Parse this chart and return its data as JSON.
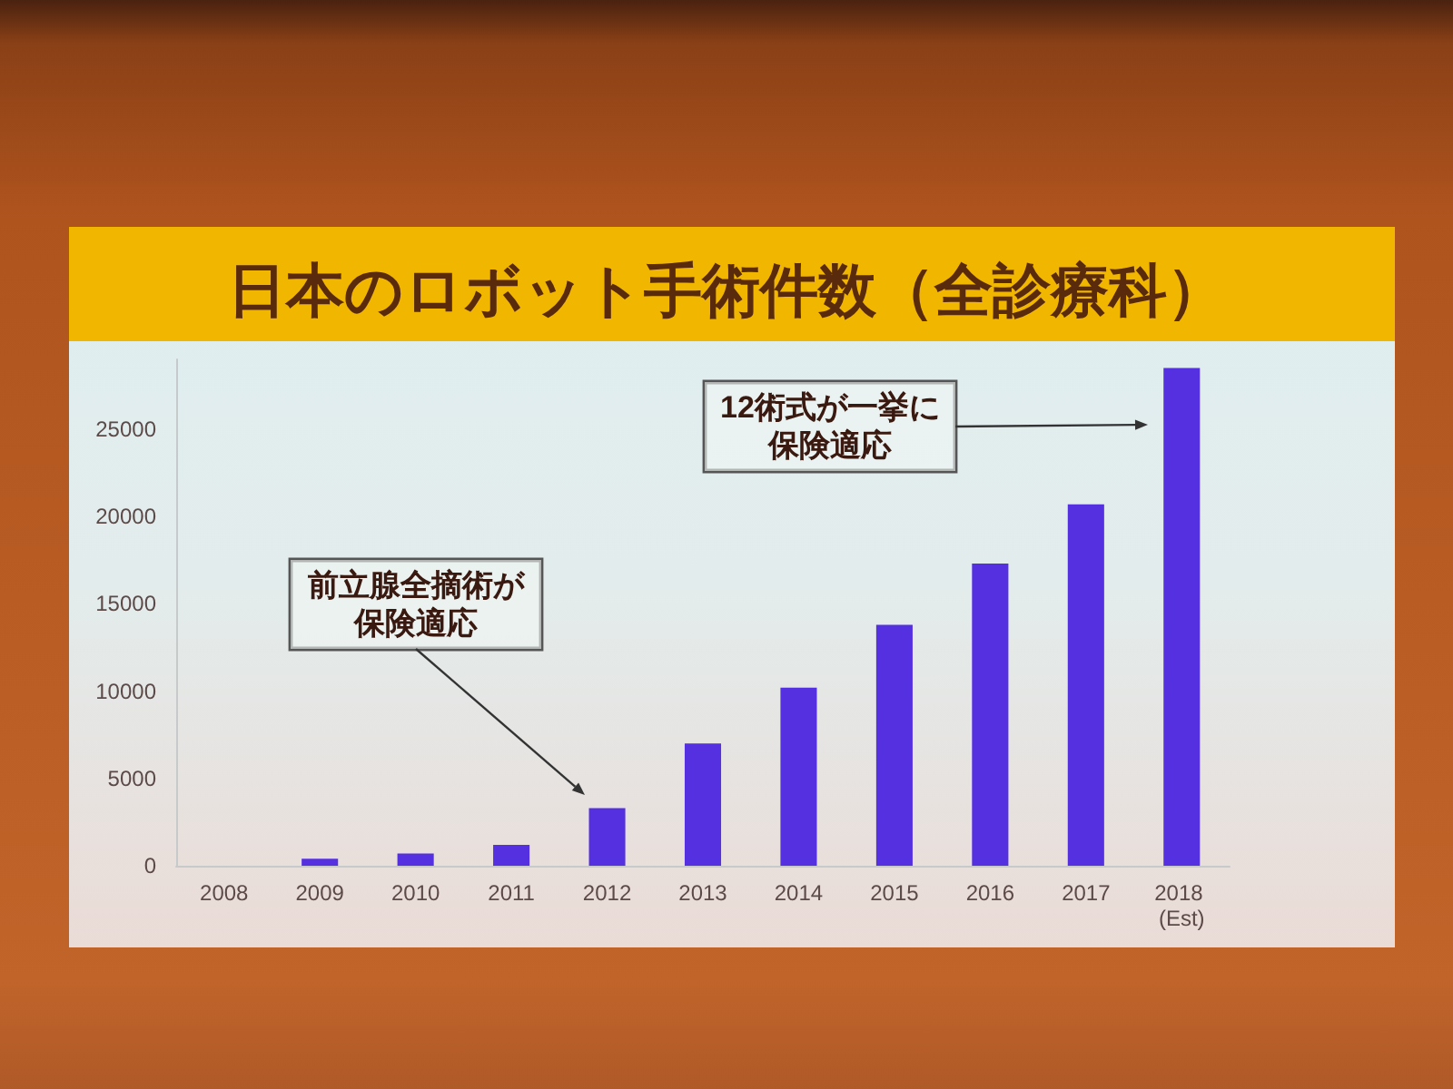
{
  "chart_data": {
    "type": "bar",
    "title": "日本のロボット手術件数（全診療科）",
    "categories": [
      "2008",
      "2009",
      "2010",
      "2011",
      "2012",
      "2013",
      "2014",
      "2015",
      "2016",
      "2017",
      "2018 (Est)"
    ],
    "values": [
      0,
      400,
      700,
      1200,
      3300,
      7000,
      10200,
      13800,
      17300,
      20700,
      28500
    ],
    "color": "#5530e0",
    "ylim": [
      0,
      29000
    ],
    "yticks": [
      0,
      5000,
      10000,
      15000,
      20000,
      25000
    ],
    "grid": false,
    "annotations": [
      "前立腺全摘術が保険適応",
      "12術式が一挙に保険適応"
    ]
  }
}
